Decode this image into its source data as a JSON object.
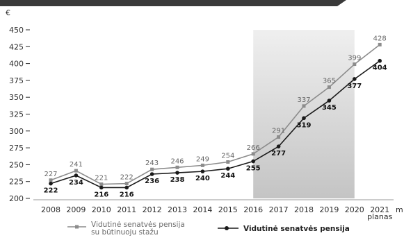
{
  "chart_data": {
    "type": "line",
    "ylabel": "€",
    "xlabel": "m",
    "categories": [
      "2008",
      "2009",
      "2010",
      "2011",
      "2012",
      "2013",
      "2014",
      "2015",
      "2016",
      "2017",
      "2018",
      "2019",
      "2020",
      "2021"
    ],
    "category_sublabels": {
      "2021": "planas"
    },
    "yticks": [
      200,
      225,
      250,
      275,
      300,
      325,
      350,
      375,
      400,
      425,
      450
    ],
    "ylim": [
      200,
      450
    ],
    "shaded_range": [
      "2016",
      "2020"
    ],
    "grid": false,
    "legend_position": "bottom",
    "series": [
      {
        "name": "Vidutinė senatvės pensija su būtinuoju stažu",
        "legend_lines": [
          "Vidutinė senatvės pensija",
          "su būtinuoju stažu"
        ],
        "marker": "square",
        "color": "#8c8c8c",
        "values": [
          227,
          241,
          221,
          222,
          243,
          246,
          249,
          254,
          266,
          291,
          337,
          365,
          399,
          428
        ]
      },
      {
        "name": "Vidutinė senatvės pensija",
        "legend_lines": [
          "Vidutinė senatvės pensija"
        ],
        "marker": "circle",
        "color": "#1a1a1a",
        "values": [
          222,
          234,
          216,
          216,
          236,
          238,
          240,
          244,
          255,
          277,
          319,
          345,
          377,
          404
        ]
      }
    ]
  }
}
